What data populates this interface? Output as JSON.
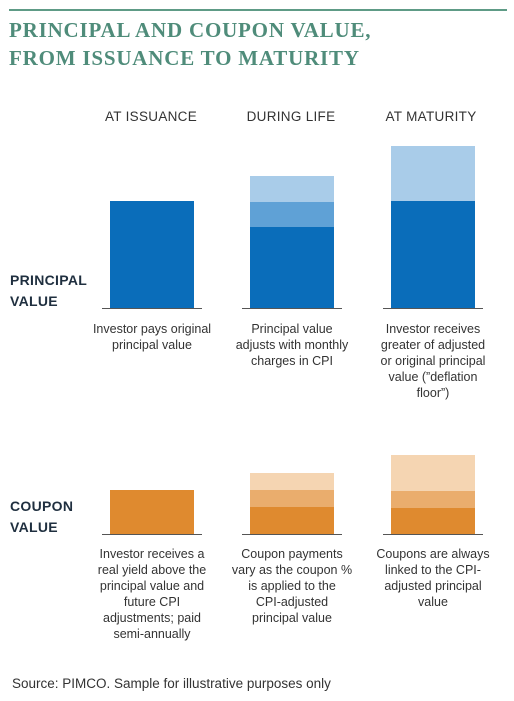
{
  "title": {
    "line1": "PRINCIPAL AND COUPON VALUE,",
    "line2": "FROM ISSUANCE TO MATURITY"
  },
  "columns": [
    {
      "header": "AT ISSUANCE"
    },
    {
      "header": "DURING LIFE"
    },
    {
      "header": "AT MATURITY"
    }
  ],
  "principal": {
    "label_line1": "PRINCIPAL",
    "label_line2": "VALUE",
    "descriptions": [
      [
        "Investor pays original",
        "principal value"
      ],
      [
        "Principal value",
        "adjusts with monthly",
        "charges in CPI"
      ],
      [
        "Investor receives",
        "greater of adjusted",
        "or original principal",
        "value (”deflation",
        "floor”)"
      ]
    ]
  },
  "coupon": {
    "label_line1": "COUPON",
    "label_line2": "VALUE",
    "descriptions": [
      [
        "Investor receives a",
        "real yield above the",
        "principal value and",
        "future CPI",
        "adjustments; paid",
        "semi-annually"
      ],
      [
        "Coupon payments",
        "vary as the coupon %",
        "is applied to the",
        "CPI-adjusted",
        "principal value"
      ],
      [
        "Coupons are always",
        "linked to the CPI-",
        "adjusted principal",
        "value"
      ]
    ]
  },
  "source": "Source: PIMCO. Sample for illustrative purposes only",
  "colors": {
    "title": "#4f8c7a",
    "rule": "#5e9b86",
    "principal_base": "#0a6dba",
    "principal_mid": "#5fa1d6",
    "principal_light": "#a9cce9",
    "coupon_base": "#df8a2f",
    "coupon_mid": "#eaad6d",
    "coupon_light": "#f5d5b2"
  }
}
